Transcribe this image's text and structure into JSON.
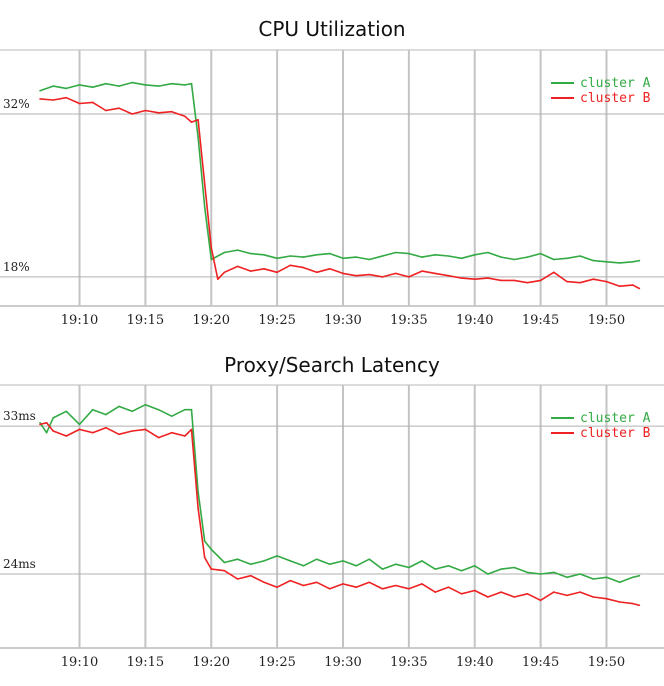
{
  "chart_data": [
    {
      "type": "line",
      "title": "CPU Utilization",
      "xlabel": "",
      "ylabel": "",
      "x_ticks": [
        "19:10",
        "19:15",
        "19:20",
        "19:25",
        "19:30",
        "19:35",
        "19:40",
        "19:45",
        "19:50"
      ],
      "xlim": [
        "19:07",
        "19:53"
      ],
      "y_ticks": [
        {
          "value": 32,
          "label": "32%"
        },
        {
          "value": 18,
          "label": "18%"
        }
      ],
      "ylim": [
        15.5,
        37.5
      ],
      "grid": true,
      "legend": "top-right",
      "series": [
        {
          "name": "cluster A",
          "color": "#33aa44",
          "points": [
            [
              "19:07",
              34.0
            ],
            [
              "19:08",
              34.4
            ],
            [
              "19:09",
              34.2
            ],
            [
              "19:10",
              34.5
            ],
            [
              "19:11",
              34.3
            ],
            [
              "19:12",
              34.6
            ],
            [
              "19:13",
              34.4
            ],
            [
              "19:14",
              34.7
            ],
            [
              "19:15",
              34.5
            ],
            [
              "19:16",
              34.4
            ],
            [
              "19:17",
              34.6
            ],
            [
              "19:18",
              34.5
            ],
            [
              "19:18.5",
              34.6
            ],
            [
              "19:19",
              30.0
            ],
            [
              "19:19.5",
              24.0
            ],
            [
              "19:20",
              19.5
            ],
            [
              "19:21",
              20.1
            ],
            [
              "19:22",
              20.3
            ],
            [
              "19:23",
              20.0
            ],
            [
              "19:24",
              19.9
            ],
            [
              "19:25",
              19.6
            ],
            [
              "19:26",
              19.8
            ],
            [
              "19:27",
              19.7
            ],
            [
              "19:28",
              19.9
            ],
            [
              "19:29",
              20.0
            ],
            [
              "19:30",
              19.6
            ],
            [
              "19:31",
              19.7
            ],
            [
              "19:32",
              19.5
            ],
            [
              "19:33",
              19.8
            ],
            [
              "19:34",
              20.1
            ],
            [
              "19:35",
              20.0
            ],
            [
              "19:36",
              19.7
            ],
            [
              "19:37",
              19.9
            ],
            [
              "19:38",
              19.8
            ],
            [
              "19:39",
              19.6
            ],
            [
              "19:40",
              19.9
            ],
            [
              "19:41",
              20.1
            ],
            [
              "19:42",
              19.7
            ],
            [
              "19:43",
              19.5
            ],
            [
              "19:44",
              19.7
            ],
            [
              "19:45",
              20.0
            ],
            [
              "19:46",
              19.5
            ],
            [
              "19:47",
              19.6
            ],
            [
              "19:48",
              19.8
            ],
            [
              "19:49",
              19.4
            ],
            [
              "19:50",
              19.3
            ],
            [
              "19:51",
              19.2
            ],
            [
              "19:52",
              19.3
            ],
            [
              "19:52.5",
              19.4
            ]
          ]
        },
        {
          "name": "cluster B",
          "color": "#ee2222",
          "points": [
            [
              "19:07",
              33.3
            ],
            [
              "19:08",
              33.2
            ],
            [
              "19:09",
              33.4
            ],
            [
              "19:10",
              32.9
            ],
            [
              "19:11",
              33.0
            ],
            [
              "19:12",
              32.3
            ],
            [
              "19:13",
              32.5
            ],
            [
              "19:14",
              32.0
            ],
            [
              "19:15",
              32.3
            ],
            [
              "19:16",
              32.1
            ],
            [
              "19:17",
              32.2
            ],
            [
              "19:18",
              31.8
            ],
            [
              "19:18.5",
              31.3
            ],
            [
              "19:19",
              31.5
            ],
            [
              "19:19.5",
              26.0
            ],
            [
              "19:20",
              20.5
            ],
            [
              "19:20.5",
              17.8
            ],
            [
              "19:21",
              18.4
            ],
            [
              "19:22",
              18.9
            ],
            [
              "19:23",
              18.5
            ],
            [
              "19:24",
              18.7
            ],
            [
              "19:25",
              18.4
            ],
            [
              "19:26",
              19.0
            ],
            [
              "19:27",
              18.8
            ],
            [
              "19:28",
              18.4
            ],
            [
              "19:29",
              18.7
            ],
            [
              "19:30",
              18.3
            ],
            [
              "19:31",
              18.1
            ],
            [
              "19:32",
              18.2
            ],
            [
              "19:33",
              18.0
            ],
            [
              "19:34",
              18.3
            ],
            [
              "19:35",
              18.0
            ],
            [
              "19:36",
              18.5
            ],
            [
              "19:37",
              18.3
            ],
            [
              "19:38",
              18.1
            ],
            [
              "19:39",
              17.9
            ],
            [
              "19:40",
              17.8
            ],
            [
              "19:41",
              17.9
            ],
            [
              "19:42",
              17.7
            ],
            [
              "19:43",
              17.7
            ],
            [
              "19:44",
              17.5
            ],
            [
              "19:45",
              17.7
            ],
            [
              "19:46",
              18.4
            ],
            [
              "19:47",
              17.6
            ],
            [
              "19:48",
              17.5
            ],
            [
              "19:49",
              17.8
            ],
            [
              "19:50",
              17.6
            ],
            [
              "19:51",
              17.2
            ],
            [
              "19:52",
              17.3
            ],
            [
              "19:52.5",
              17.0
            ]
          ]
        }
      ]
    },
    {
      "type": "line",
      "title": "Proxy/Search Latency",
      "xlabel": "",
      "ylabel": "",
      "x_ticks": [
        "19:10",
        "19:15",
        "19:20",
        "19:25",
        "19:30",
        "19:35",
        "19:40",
        "19:45",
        "19:50"
      ],
      "xlim": [
        "19:07",
        "19:53"
      ],
      "y_ticks": [
        {
          "value": 33,
          "label": "33ms"
        },
        {
          "value": 24,
          "label": "24ms"
        }
      ],
      "ylim": [
        19.5,
        35.5
      ],
      "grid": true,
      "legend": "top-right",
      "series": [
        {
          "name": "cluster A",
          "color": "#33aa44",
          "points": [
            [
              "19:07",
              33.2
            ],
            [
              "19:07.5",
              32.6
            ],
            [
              "19:08",
              33.5
            ],
            [
              "19:09",
              33.9
            ],
            [
              "19:10",
              33.1
            ],
            [
              "19:11",
              34.0
            ],
            [
              "19:12",
              33.7
            ],
            [
              "19:13",
              34.2
            ],
            [
              "19:14",
              33.9
            ],
            [
              "19:15",
              34.3
            ],
            [
              "19:16",
              34.0
            ],
            [
              "19:17",
              33.6
            ],
            [
              "19:18",
              34.0
            ],
            [
              "19:18.5",
              34.0
            ],
            [
              "19:19",
              29.0
            ],
            [
              "19:19.5",
              26.0
            ],
            [
              "19:20",
              25.5
            ],
            [
              "19:21",
              24.7
            ],
            [
              "19:22",
              24.9
            ],
            [
              "19:23",
              24.6
            ],
            [
              "19:24",
              24.8
            ],
            [
              "19:25",
              25.1
            ],
            [
              "19:26",
              24.8
            ],
            [
              "19:27",
              24.5
            ],
            [
              "19:28",
              24.9
            ],
            [
              "19:29",
              24.6
            ],
            [
              "19:30",
              24.8
            ],
            [
              "19:31",
              24.5
            ],
            [
              "19:32",
              24.9
            ],
            [
              "19:33",
              24.3
            ],
            [
              "19:34",
              24.6
            ],
            [
              "19:35",
              24.4
            ],
            [
              "19:36",
              24.8
            ],
            [
              "19:37",
              24.3
            ],
            [
              "19:38",
              24.5
            ],
            [
              "19:39",
              24.2
            ],
            [
              "19:40",
              24.5
            ],
            [
              "19:41",
              24.0
            ],
            [
              "19:42",
              24.3
            ],
            [
              "19:43",
              24.4
            ],
            [
              "19:44",
              24.1
            ],
            [
              "19:45",
              24.0
            ],
            [
              "19:46",
              24.1
            ],
            [
              "19:47",
              23.8
            ],
            [
              "19:48",
              24.0
            ],
            [
              "19:49",
              23.7
            ],
            [
              "19:50",
              23.8
            ],
            [
              "19:51",
              23.5
            ],
            [
              "19:52",
              23.8
            ],
            [
              "19:52.5",
              23.9
            ]
          ]
        },
        {
          "name": "cluster B",
          "color": "#ee2222",
          "points": [
            [
              "19:07",
              33.1
            ],
            [
              "19:07.5",
              33.2
            ],
            [
              "19:08",
              32.7
            ],
            [
              "19:09",
              32.4
            ],
            [
              "19:10",
              32.8
            ],
            [
              "19:11",
              32.6
            ],
            [
              "19:12",
              32.9
            ],
            [
              "19:13",
              32.5
            ],
            [
              "19:14",
              32.7
            ],
            [
              "19:15",
              32.8
            ],
            [
              "19:16",
              32.3
            ],
            [
              "19:17",
              32.6
            ],
            [
              "19:18",
              32.4
            ],
            [
              "19:18.5",
              32.8
            ],
            [
              "19:19",
              28.0
            ],
            [
              "19:19.5",
              25.0
            ],
            [
              "19:20",
              24.3
            ],
            [
              "19:21",
              24.2
            ],
            [
              "19:22",
              23.7
            ],
            [
              "19:23",
              23.9
            ],
            [
              "19:24",
              23.5
            ],
            [
              "19:25",
              23.2
            ],
            [
              "19:26",
              23.6
            ],
            [
              "19:27",
              23.3
            ],
            [
              "19:28",
              23.5
            ],
            [
              "19:29",
              23.1
            ],
            [
              "19:30",
              23.4
            ],
            [
              "19:31",
              23.2
            ],
            [
              "19:32",
              23.5
            ],
            [
              "19:33",
              23.1
            ],
            [
              "19:34",
              23.3
            ],
            [
              "19:35",
              23.1
            ],
            [
              "19:36",
              23.4
            ],
            [
              "19:37",
              22.9
            ],
            [
              "19:38",
              23.2
            ],
            [
              "19:39",
              22.8
            ],
            [
              "19:40",
              23.0
            ],
            [
              "19:41",
              22.6
            ],
            [
              "19:42",
              22.9
            ],
            [
              "19:43",
              22.6
            ],
            [
              "19:44",
              22.8
            ],
            [
              "19:45",
              22.4
            ],
            [
              "19:46",
              22.9
            ],
            [
              "19:47",
              22.7
            ],
            [
              "19:48",
              22.9
            ],
            [
              "19:49",
              22.6
            ],
            [
              "19:50",
              22.5
            ],
            [
              "19:51",
              22.3
            ],
            [
              "19:52",
              22.2
            ],
            [
              "19:52.5",
              22.1
            ]
          ]
        }
      ]
    }
  ]
}
